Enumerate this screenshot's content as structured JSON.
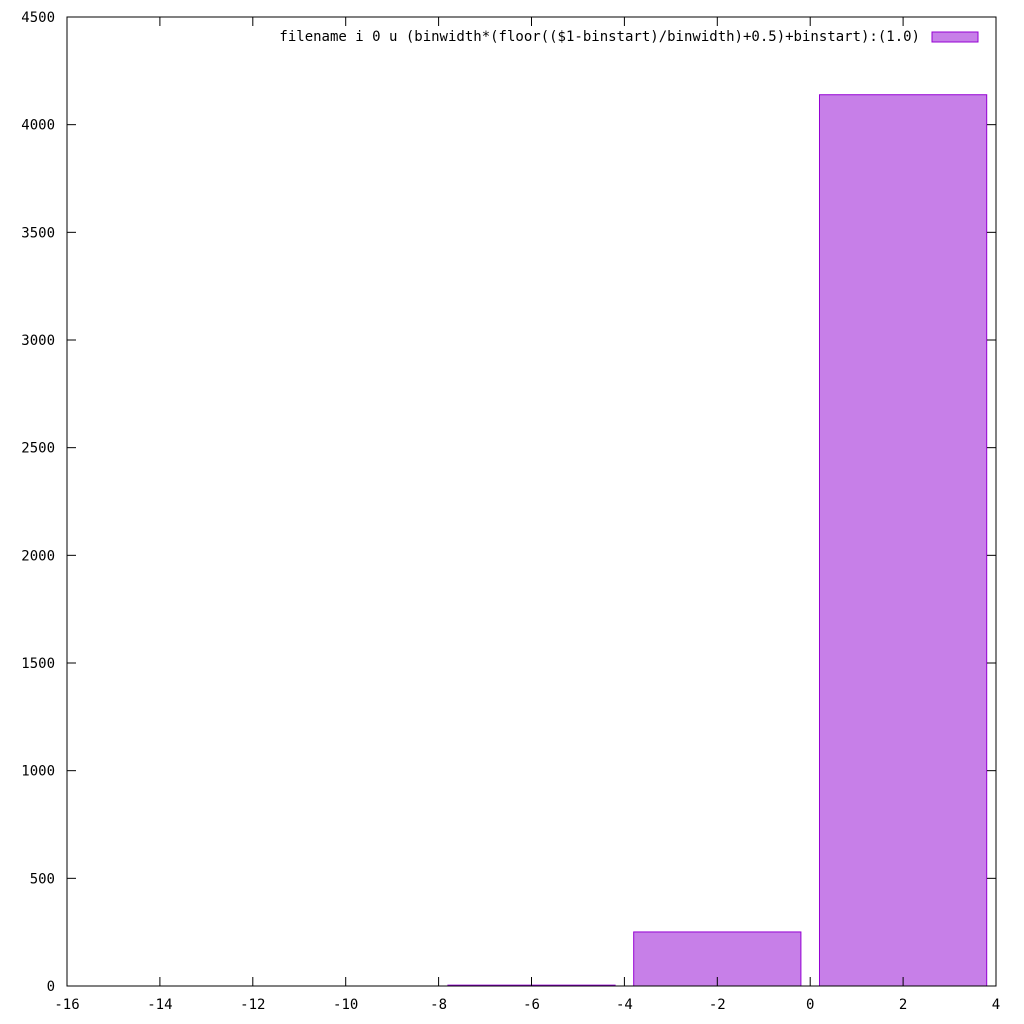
{
  "chart_data": {
    "type": "bar",
    "x": [
      -6,
      -2,
      2
    ],
    "values": [
      4,
      251,
      4139
    ],
    "bin_width": 4,
    "bar_gap_fraction": 0.1,
    "xlim": [
      -16,
      4
    ],
    "ylim": [
      0,
      4500
    ],
    "xticks": [
      -16,
      -14,
      -12,
      -10,
      -8,
      -6,
      -4,
      -2,
      0,
      2,
      4
    ],
    "yticks": [
      0,
      500,
      1000,
      1500,
      2000,
      2500,
      3000,
      3500,
      4000,
      4500
    ],
    "xtick_labels": [
      "-16",
      "-14",
      "-12",
      "-10",
      "-8",
      "-6",
      "-4",
      "-2",
      "0",
      "2",
      "4"
    ],
    "ytick_labels": [
      "0",
      "500",
      "1000",
      "1500",
      "2000",
      "2500",
      "3000",
      "3500",
      "4000",
      "4500"
    ],
    "series": [
      {
        "name": "filename i 0 u (binwidth*(floor(($1-binstart)/binwidth)+0.5)+binstart):(1.0)",
        "color": "#c77fe8",
        "stroke": "#9400d3"
      }
    ],
    "legend_position": "top-right",
    "grid": false
  }
}
